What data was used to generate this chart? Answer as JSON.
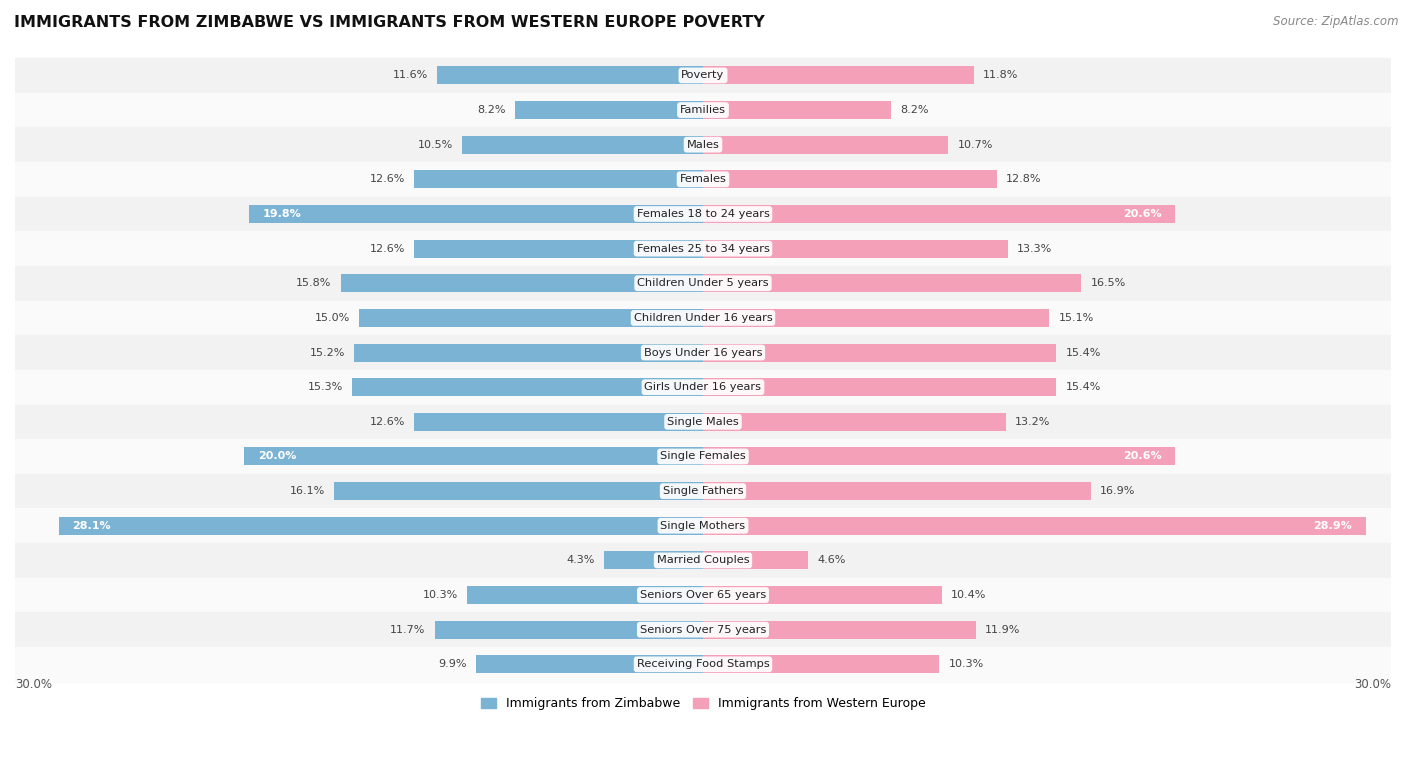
{
  "title": "IMMIGRANTS FROM ZIMBABWE VS IMMIGRANTS FROM WESTERN EUROPE POVERTY",
  "source": "Source: ZipAtlas.com",
  "categories": [
    "Poverty",
    "Families",
    "Males",
    "Females",
    "Females 18 to 24 years",
    "Females 25 to 34 years",
    "Children Under 5 years",
    "Children Under 16 years",
    "Boys Under 16 years",
    "Girls Under 16 years",
    "Single Males",
    "Single Females",
    "Single Fathers",
    "Single Mothers",
    "Married Couples",
    "Seniors Over 65 years",
    "Seniors Over 75 years",
    "Receiving Food Stamps"
  ],
  "zimbabwe_values": [
    11.6,
    8.2,
    10.5,
    12.6,
    19.8,
    12.6,
    15.8,
    15.0,
    15.2,
    15.3,
    12.6,
    20.0,
    16.1,
    28.1,
    4.3,
    10.3,
    11.7,
    9.9
  ],
  "western_europe_values": [
    11.8,
    8.2,
    10.7,
    12.8,
    20.6,
    13.3,
    16.5,
    15.1,
    15.4,
    15.4,
    13.2,
    20.6,
    16.9,
    28.9,
    4.6,
    10.4,
    11.9,
    10.3
  ],
  "zimbabwe_color": "#7ab3d4",
  "western_europe_color": "#f4a0b8",
  "row_bg_even": "#f2f2f2",
  "row_bg_odd": "#fafafa",
  "max_value": 30.0,
  "bar_height": 0.52,
  "inside_label_threshold": 18.0,
  "legend_label_zimbabwe": "Immigrants from Zimbabwe",
  "legend_label_western_europe": "Immigrants from Western Europe"
}
